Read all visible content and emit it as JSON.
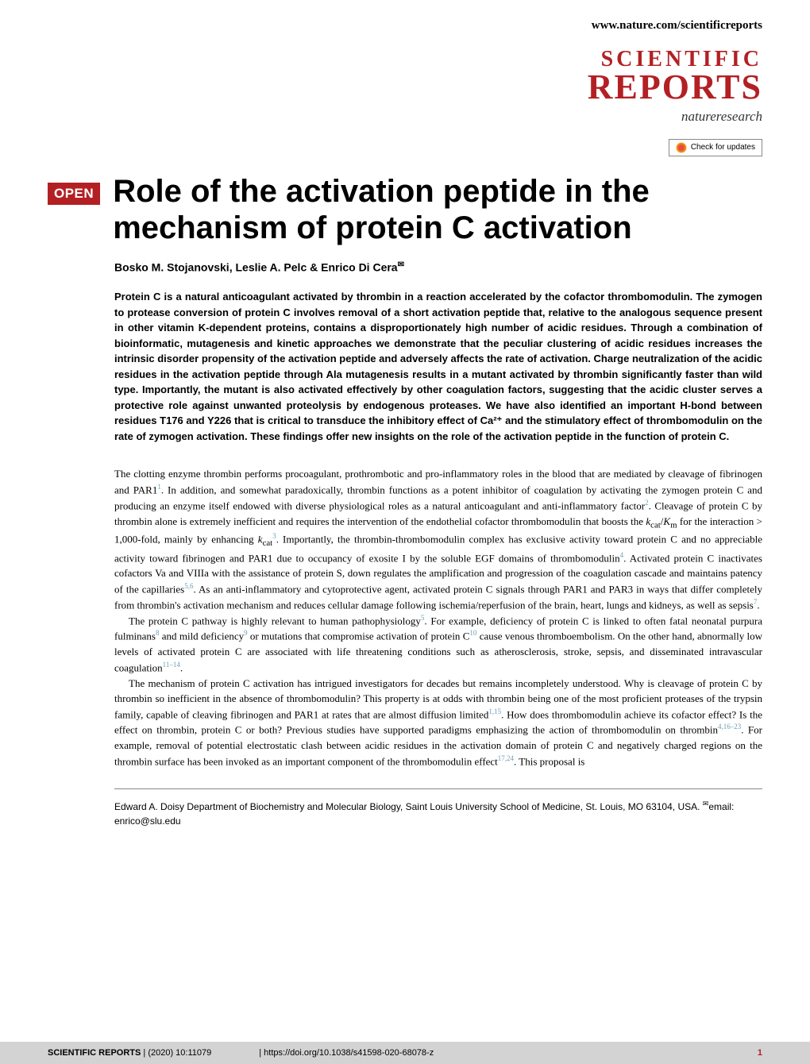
{
  "header": {
    "url": "www.nature.com/scientificreports"
  },
  "journal": {
    "name_top": "SCIENTIFIC",
    "name_bottom": "REPORTS",
    "tagline": "natureresearch",
    "check_updates": "Check for updates"
  },
  "article": {
    "open_badge": "OPEN",
    "title": "Role of the activation peptide in the mechanism of protein C activation",
    "authors": "Bosko M. Stojanovski, Leslie A. Pelc & Enrico Di Cera",
    "corr_symbol": "✉",
    "abstract": "Protein C is a natural anticoagulant activated by thrombin in a reaction accelerated by the cofactor thrombomodulin. The zymogen to protease conversion of protein C involves removal of a short activation peptide that, relative to the analogous sequence present in other vitamin K-dependent proteins, contains a disproportionately high number of acidic residues. Through a combination of bioinformatic, mutagenesis and kinetic approaches we demonstrate that the peculiar clustering of acidic residues increases the intrinsic disorder propensity of the activation peptide and adversely affects the rate of activation. Charge neutralization of the acidic residues in the activation peptide through Ala mutagenesis results in a mutant activated by thrombin significantly faster than wild type. Importantly, the mutant is also activated effectively by other coagulation factors, suggesting that the acidic cluster serves a protective role against unwanted proteolysis by endogenous proteases. We have also identified an important H-bond between residues T176 and Y226 that is critical to transduce the inhibitory effect of Ca²⁺ and the stimulatory effect of thrombomodulin on the rate of zymogen activation. These findings offer new insights on the role of the activation peptide in the function of protein C."
  },
  "body": {
    "p1_a": "The clotting enzyme thrombin performs procoagulant, prothrombotic and pro-inflammatory roles in the blood that are mediated by cleavage of fibrinogen and PAR1",
    "p1_b": ". In addition, and somewhat paradoxically, thrombin functions as a potent inhibitor of coagulation by activating the zymogen protein C and producing an enzyme itself endowed with diverse physiological roles as a natural anticoagulant and anti-inflammatory factor",
    "p1_c": ". Cleavage of protein C by thrombin alone is extremely inefficient and requires the intervention of the endothelial cofactor thrombomodulin that boosts the ",
    "p1_kcat": "k",
    "p1_cat": "cat",
    "p1_slash": "/",
    "p1_km": "K",
    "p1_m": "m",
    "p1_d": " for the interaction > 1,000-fold, mainly by enhancing ",
    "p1_e": ". Importantly, the thrombin-thrombomodulin complex has exclusive activity toward protein C and no appreciable activity toward fibrinogen and PAR1 due to occupancy of exosite I by the soluble EGF domains of thrombomodulin",
    "p1_f": ". Activated protein C inactivates cofactors Va and VIIIa with the assistance of protein S, down regulates the amplification and progression of the coagulation cascade and maintains patency of the capillaries",
    "p1_g": ". As an anti-inflammatory and cytoprotective agent, activated protein C signals through PAR1 and PAR3 in ways that differ completely from thrombin's activation mechanism and reduces cellular damage following ischemia/reperfusion of the brain, heart, lungs and kidneys, as well as sepsis",
    "p1_h": ".",
    "p2_a": "The protein C pathway is highly relevant to human pathophysiology",
    "p2_b": ". For example, deficiency of protein C is linked to often fatal neonatal purpura fulminans",
    "p2_c": " and mild deficiency",
    "p2_d": " or mutations that compromise activation of protein C",
    "p2_e": " cause venous thromboembolism. On the other hand, abnormally low levels of activated protein C are associated with life threatening conditions such as atherosclerosis, stroke, sepsis, and disseminated intravascular coagulation",
    "p2_f": ".",
    "p3_a": "The mechanism of protein C activation has intrigued investigators for decades but remains incompletely understood. Why is cleavage of protein C by thrombin so inefficient in the absence of thrombomodulin? This property is at odds with thrombin being one of the most proficient proteases of the trypsin family, capable of cleaving fibrinogen and PAR1 at rates that are almost diffusion limited",
    "p3_b": ". How does thrombomodulin achieve its cofactor effect? Is the effect on thrombin, protein C or both? Previous studies have supported paradigms emphasizing the action of thrombomodulin on thrombin",
    "p3_c": ". For example, removal of potential electrostatic clash between acidic residues in the activation domain of protein C and negatively charged regions on the thrombin surface has been invoked as an important component of the thrombomodulin effect",
    "p3_d": ". This proposal is"
  },
  "refs": {
    "r1": "1",
    "r2": "2",
    "r3": "3",
    "r4": "4",
    "r5": "5",
    "r56": "5,6",
    "r7": "7",
    "r8": "8",
    "r9": "9",
    "r10": "10",
    "r1114": "11–14",
    "r115": "1,15",
    "r41623": "4,16–23",
    "r1724": "17,24"
  },
  "affiliation": {
    "text": "Edward A. Doisy Department of Biochemistry and Molecular Biology, Saint Louis University School of Medicine, St. Louis, MO 63104, USA. ",
    "email_symbol": "✉",
    "email_label": "email: ",
    "email": "enrico@slu.edu"
  },
  "footer": {
    "journal": "SCIENTIFIC REPORTS",
    "sep": " | ",
    "citation": "(2020) 10:11079",
    "doi": "| https://doi.org/10.1038/s41598-020-68078-z",
    "page": "1"
  },
  "colors": {
    "brand_red": "#b32024",
    "link_blue": "#6a9fb5",
    "footer_bg": "#d3d3d3"
  }
}
